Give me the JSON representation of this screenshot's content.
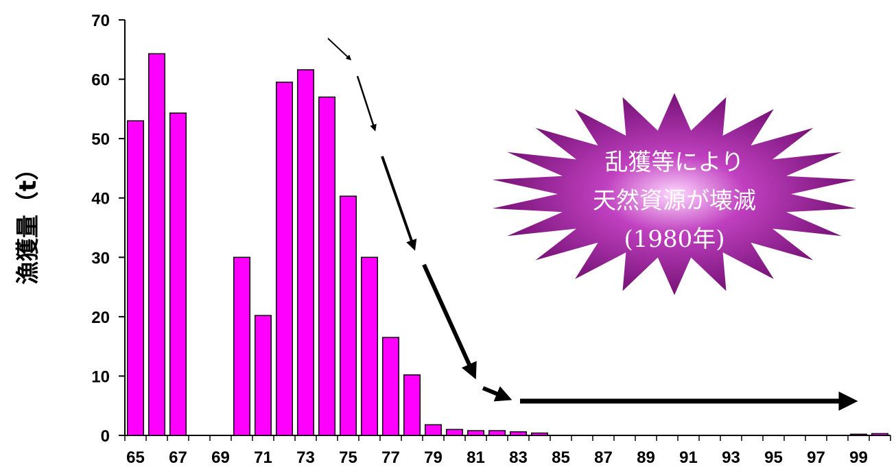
{
  "chart_data": {
    "type": "bar",
    "ylabel": "漁獲量（t）",
    "ylim": [
      0,
      70
    ],
    "yticks": [
      0,
      10,
      20,
      30,
      40,
      50,
      60,
      70
    ],
    "x": [
      65,
      66,
      67,
      68,
      69,
      70,
      71,
      72,
      73,
      74,
      75,
      76,
      77,
      78,
      79,
      80,
      81,
      82,
      83,
      84,
      85,
      86,
      87,
      88,
      89,
      90,
      91,
      92,
      93,
      94,
      95,
      96,
      97,
      98,
      99,
      100
    ],
    "xtick_labels": [
      "65",
      "67",
      "69",
      "71",
      "73",
      "75",
      "77",
      "79",
      "81",
      "83",
      "85",
      "87",
      "89",
      "91",
      "93",
      "95",
      "97",
      "99"
    ],
    "values": [
      53,
      64.3,
      54.3,
      0,
      0,
      30,
      20.2,
      59.5,
      61.6,
      57,
      40.3,
      30,
      16.5,
      10.2,
      1.8,
      1.0,
      0.8,
      0.8,
      0.6,
      0.4,
      0,
      0,
      0,
      0,
      0,
      0,
      0,
      0,
      0,
      0,
      0,
      0,
      0,
      0,
      0.2,
      0.3
    ],
    "bar_color": "#FF00FF",
    "annotation": {
      "lines": [
        "乱獲等により",
        "天然資源が壊滅",
        "(1980年)"
      ],
      "fill_color": "#9B1F9B"
    }
  }
}
